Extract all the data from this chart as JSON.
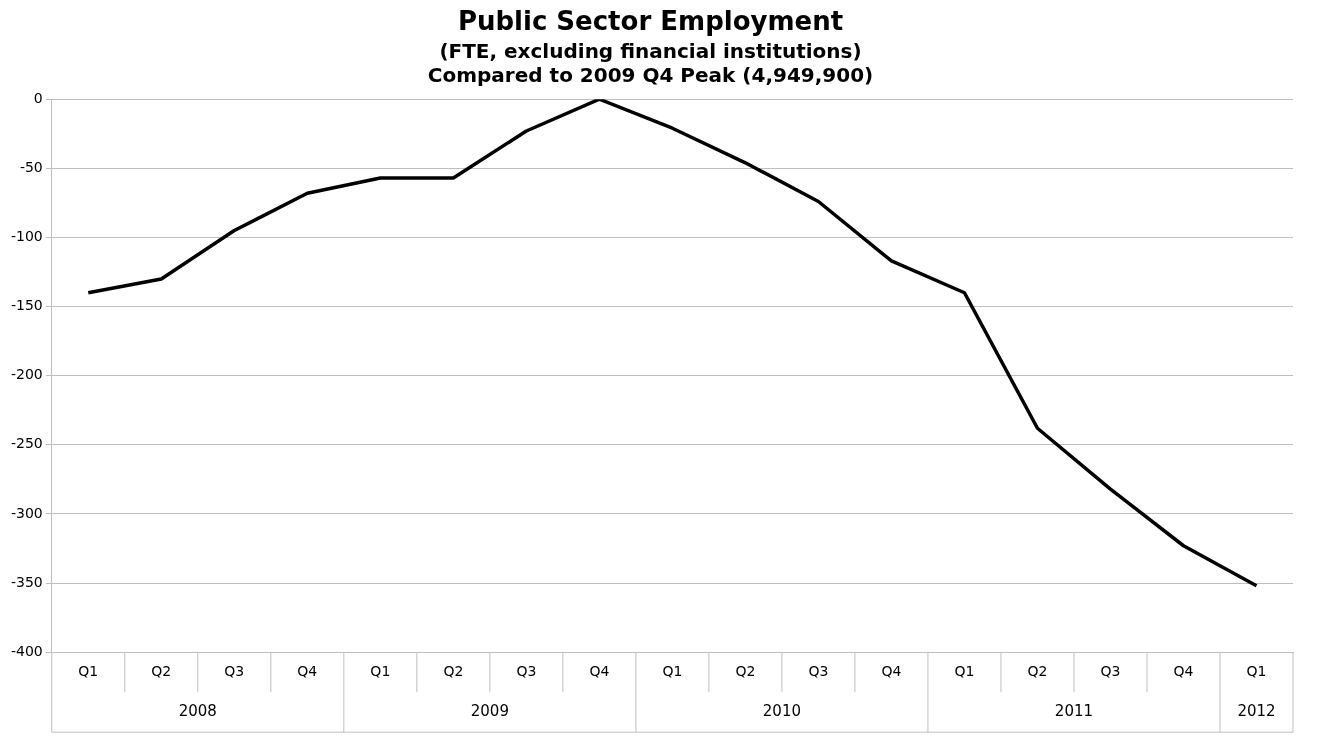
{
  "chart_data": {
    "type": "line",
    "title": "Public Sector Employment",
    "subtitle": "(FTE, excluding financial institutions)\nCompared to 2009 Q4 Peak (4,949,900)",
    "categories": [
      "Q1",
      "Q2",
      "Q3",
      "Q4",
      "Q1",
      "Q2",
      "Q3",
      "Q4",
      "Q1",
      "Q2",
      "Q3",
      "Q4",
      "Q1",
      "Q2",
      "Q3",
      "Q4",
      "Q1"
    ],
    "series": [
      {
        "color": "#000000",
        "values": [
          -140,
          -130,
          -95,
          -68,
          -57,
          -57,
          -23,
          0,
          -21,
          -46,
          -74,
          -117,
          -140,
          -238,
          -282,
          -323,
          -352
        ]
      }
    ],
    "annotations": [
      "2008",
      "2009",
      "2010",
      "2011",
      "2012"
    ],
    "ylim": [
      -400,
      0
    ],
    "yticks": [
      -400,
      -350,
      -300,
      -250,
      -200,
      -150,
      -100,
      -50,
      0
    ],
    "grid": "y",
    "legend": false,
    "marker": "none",
    "line_style": "solid"
  }
}
